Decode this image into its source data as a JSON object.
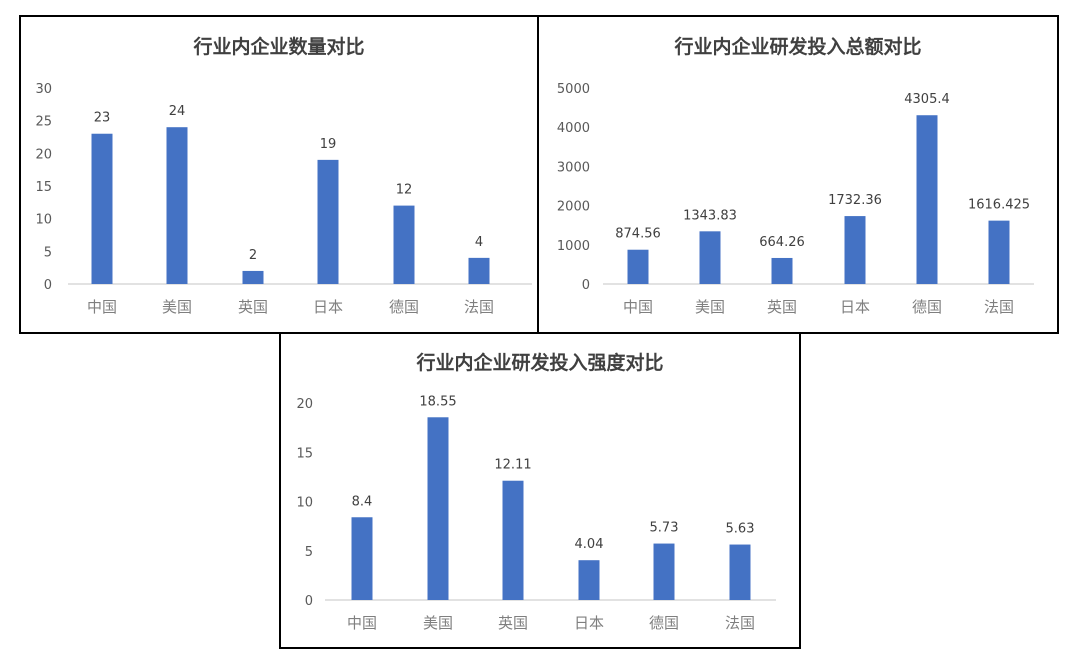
{
  "colors": {
    "bar": "#4472c4",
    "axis": "#d9d9d9",
    "border": "#000000",
    "first_category_label": "#c0804a"
  },
  "chart_data": [
    {
      "type": "bar",
      "title": "行业内企业数量对比",
      "categories": [
        "中国",
        "美国",
        "英国",
        "日本",
        "德国",
        "法国"
      ],
      "values": [
        23,
        24,
        2,
        19,
        12,
        4
      ],
      "value_labels": [
        "23",
        "24",
        "2",
        "19",
        "12",
        "4"
      ],
      "ylim": [
        0,
        30
      ],
      "yticks": [
        "0",
        "5",
        "10",
        "15",
        "20",
        "25",
        "30"
      ],
      "grid": false,
      "legend": "none"
    },
    {
      "type": "bar",
      "title": "行业内企业研发投入总额对比",
      "categories": [
        "中国",
        "美国",
        "英国",
        "日本",
        "德国",
        "法国"
      ],
      "values": [
        874.56,
        1343.83,
        664.26,
        1732.36,
        4305.4,
        1616.425
      ],
      "value_labels": [
        "874.56",
        "1343.83",
        "664.26",
        "1732.36",
        "4305.4",
        "1616.425"
      ],
      "ylim": [
        0,
        5000
      ],
      "yticks": [
        "0",
        "1000",
        "2000",
        "3000",
        "4000",
        "5000"
      ],
      "grid": false,
      "legend": "none"
    },
    {
      "type": "bar",
      "title": "行业内企业研发投入强度对比",
      "categories": [
        "中国",
        "美国",
        "英国",
        "日本",
        "德国",
        "法国"
      ],
      "values": [
        8.4,
        18.55,
        12.11,
        4.04,
        5.73,
        5.63
      ],
      "value_labels": [
        "8.4",
        "18.55",
        "12.11",
        "4.04",
        "5.73",
        "5.63"
      ],
      "ylim": [
        0,
        20
      ],
      "yticks": [
        "0",
        "5",
        "10",
        "15",
        "20"
      ],
      "grid": false,
      "legend": "none"
    }
  ]
}
